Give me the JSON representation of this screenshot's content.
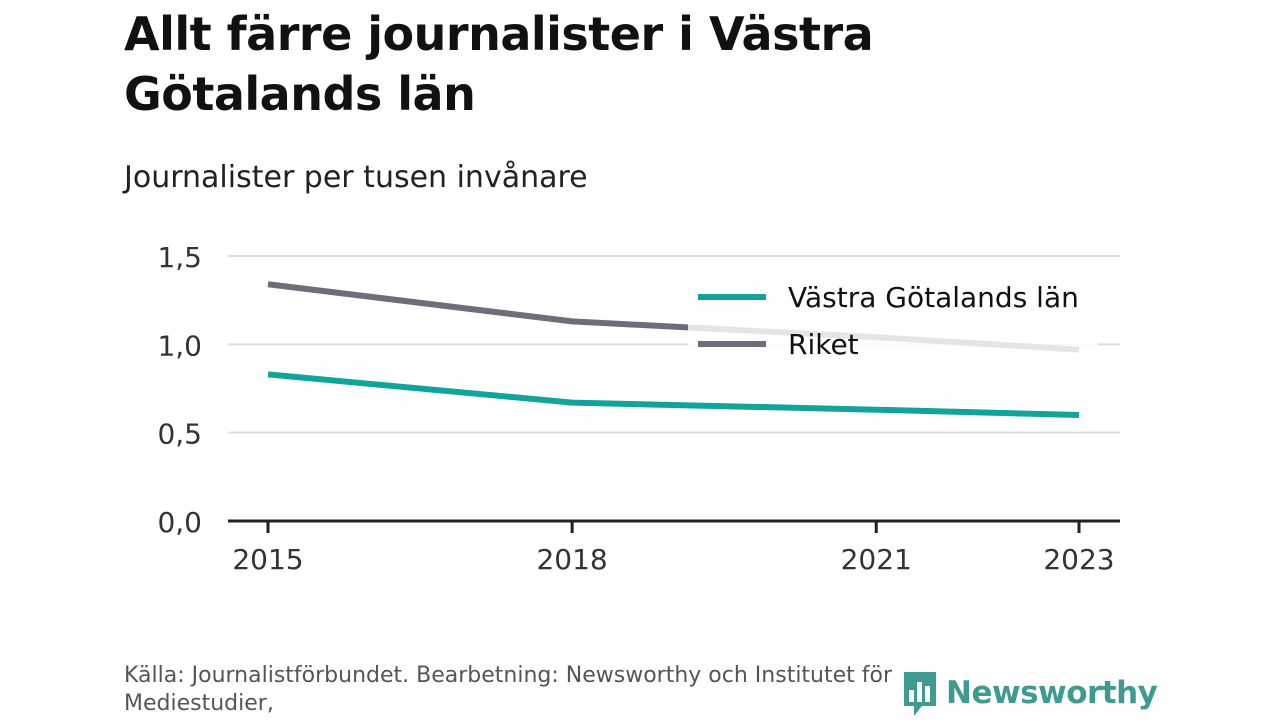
{
  "header": {
    "title": "Allt färre journalister i Västra Götalands län",
    "subtitle": "Journalister per tusen invånare"
  },
  "footer": {
    "source": "Källa: Journalistförbundet. Bearbetning: Newsworthy och Institutet för Mediestudier,",
    "logo_text": "Newsworthy",
    "logo_color": "#3f9b92"
  },
  "chart_data": {
    "type": "line",
    "title": "Allt färre journalister i Västra Götalands län",
    "subtitle": "Journalister per tusen invånare",
    "xlabel": "",
    "ylabel": "",
    "x": [
      2015,
      2018,
      2021,
      2023
    ],
    "x_tick_labels": [
      "2015",
      "2018",
      "2021",
      "2023"
    ],
    "xlim": [
      2015,
      2023
    ],
    "ylim": [
      0,
      1.5
    ],
    "y_ticks": [
      0.0,
      0.5,
      1.0,
      1.5
    ],
    "y_tick_labels": [
      "0,0",
      "0,5",
      "1,0",
      "1,5"
    ],
    "grid": true,
    "legend_position": "top-right",
    "series": [
      {
        "name": "Västra Götalands län",
        "color": "#12a39a",
        "values": [
          0.83,
          0.67,
          0.63,
          0.6
        ]
      },
      {
        "name": "Riket",
        "color": "#6e6e78",
        "values": [
          1.34,
          1.13,
          1.04,
          0.97
        ]
      }
    ]
  }
}
